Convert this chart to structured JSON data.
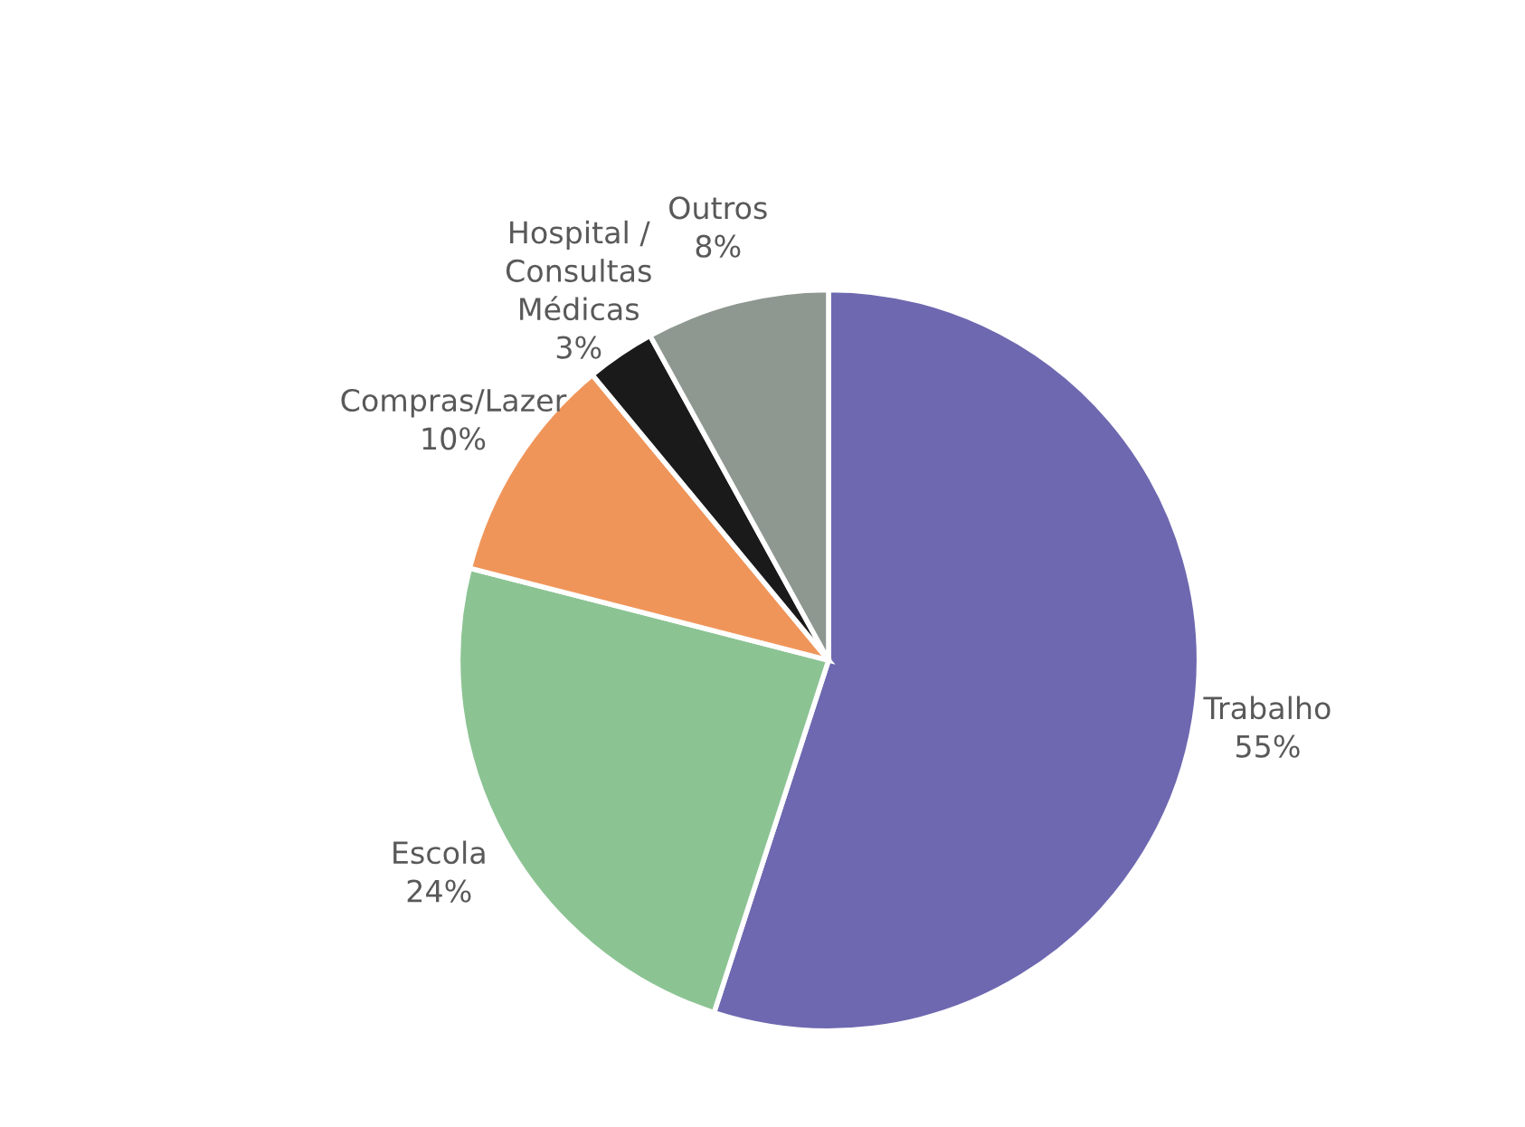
{
  "chart_data": {
    "type": "pie",
    "categories": [
      "Trabalho",
      "Escola",
      "Compras/Lazer",
      "Hospital /\nConsultas\nMédicas",
      "Outros"
    ],
    "values": [
      55,
      24,
      10,
      3,
      8
    ],
    "value_labels": [
      "55%",
      "24%",
      "10%",
      "3%",
      "8%"
    ],
    "colors": [
      "#6e68b0",
      "#8cc393",
      "#f0955a",
      "#1a1a1a",
      "#8e9890"
    ],
    "legend": false
  }
}
